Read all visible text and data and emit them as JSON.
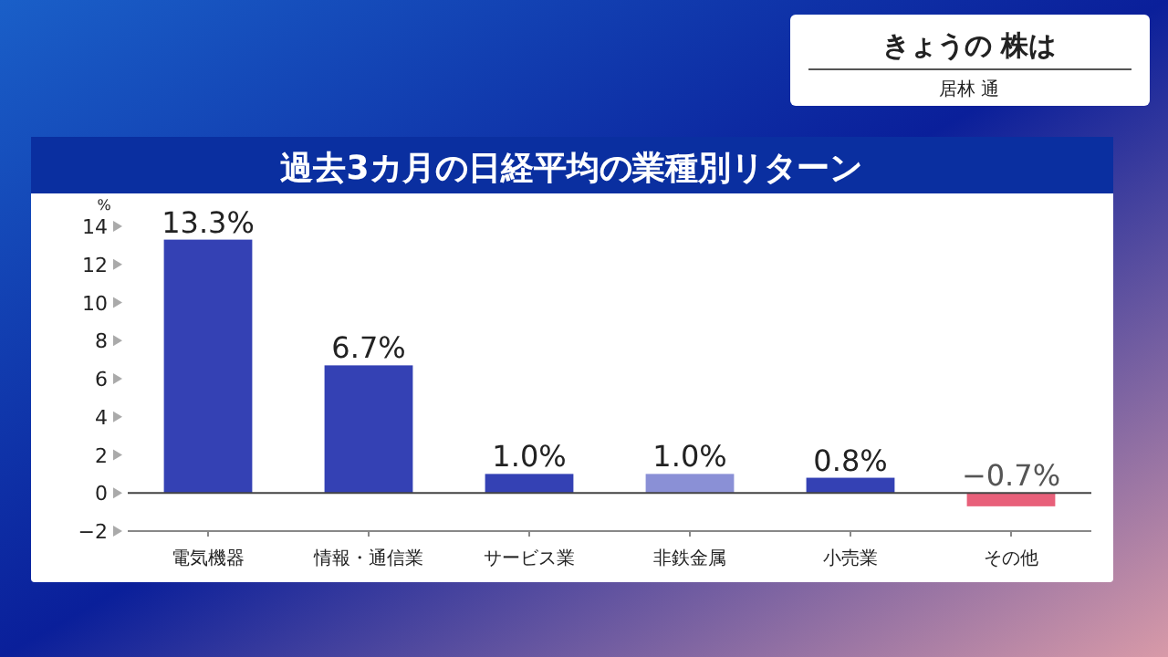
{
  "chart_data": {
    "type": "bar",
    "title": "過去3カ月の日経平均の業種別リターン",
    "ylabel": "%",
    "categories": [
      "電気機器",
      "情報・通信業",
      "サービス業",
      "非鉄金属",
      "小売業",
      "その他"
    ],
    "values": [
      13.3,
      6.7,
      1.0,
      1.0,
      0.8,
      -0.7
    ],
    "colors": [
      "#3441b4",
      "#3441b4",
      "#3441b4",
      "#8a90d6",
      "#3441b4",
      "#e8607a"
    ],
    "value_labels": [
      "13.3%",
      "6.7%",
      "1.0%",
      "1.0%",
      "0.8%",
      "−0.7%"
    ],
    "ylim": [
      -2,
      14
    ],
    "yticks": [
      {
        "value": -2,
        "label": "−2"
      },
      0,
      2,
      4,
      6,
      8,
      10,
      12,
      14
    ],
    "annotations": [
      "きょうの 株は",
      "居林 通"
    ]
  }
}
